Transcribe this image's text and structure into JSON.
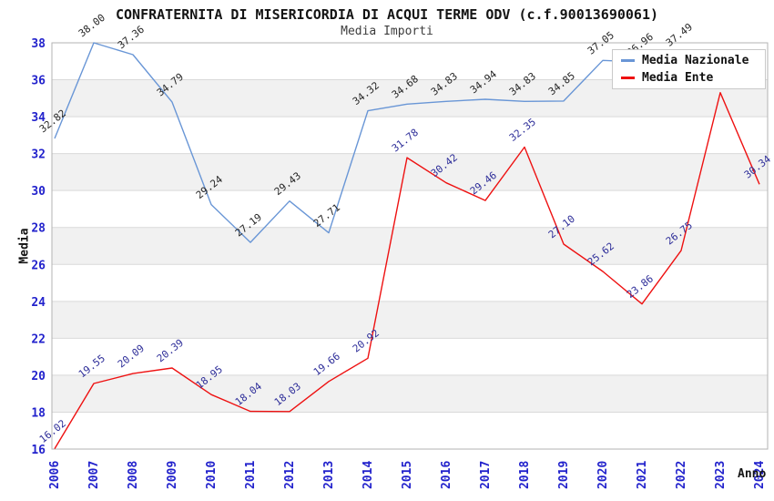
{
  "title": "CONFRATERNITA DI MISERICORDIA DI ACQUI TERME ODV (c.f.90013690061)",
  "subtitle": "Media Importi",
  "legend": {
    "items": [
      {
        "label": "Media Nazionale",
        "color": "#6996d6"
      },
      {
        "label": "Media Ente",
        "color": "#ee1111"
      }
    ]
  },
  "chart_data": {
    "type": "line",
    "title": "CONFRATERNITA DI MISERICORDIA DI ACQUI TERME ODV (c.f.90013690061)",
    "subtitle": "Media Importi",
    "xlabel": "Anno",
    "ylabel": "Media",
    "x": [
      2006,
      2007,
      2008,
      2009,
      2010,
      2011,
      2012,
      2013,
      2014,
      2015,
      2016,
      2017,
      2018,
      2019,
      2020,
      2021,
      2022,
      2023,
      2024
    ],
    "ylim": [
      16,
      38
    ],
    "ytick_step": 2,
    "grid": "horizontal-bands",
    "legend_position": "top-right",
    "series": [
      {
        "name": "Media Nazionale",
        "color": "#6996d6",
        "label_color": "#262626",
        "values": [
          32.82,
          38.0,
          37.36,
          34.79,
          29.24,
          27.19,
          29.43,
          27.71,
          34.32,
          34.68,
          34.83,
          34.94,
          34.83,
          34.85,
          37.05,
          36.96,
          37.49,
          null,
          null
        ]
      },
      {
        "name": "Media Ente",
        "color": "#ee1111",
        "label_color": "#2e2e99",
        "values": [
          16.02,
          19.55,
          20.09,
          20.39,
          18.95,
          18.04,
          18.03,
          19.66,
          20.92,
          31.78,
          30.42,
          29.46,
          32.35,
          27.1,
          25.62,
          23.86,
          26.75,
          35.3,
          30.34
        ]
      }
    ]
  },
  "colors": {
    "axis_tick": "#2222cc",
    "band_fill": "#f1f1f1",
    "gridline": "#d9d9d9",
    "plot_border": "#b3b3b3"
  }
}
